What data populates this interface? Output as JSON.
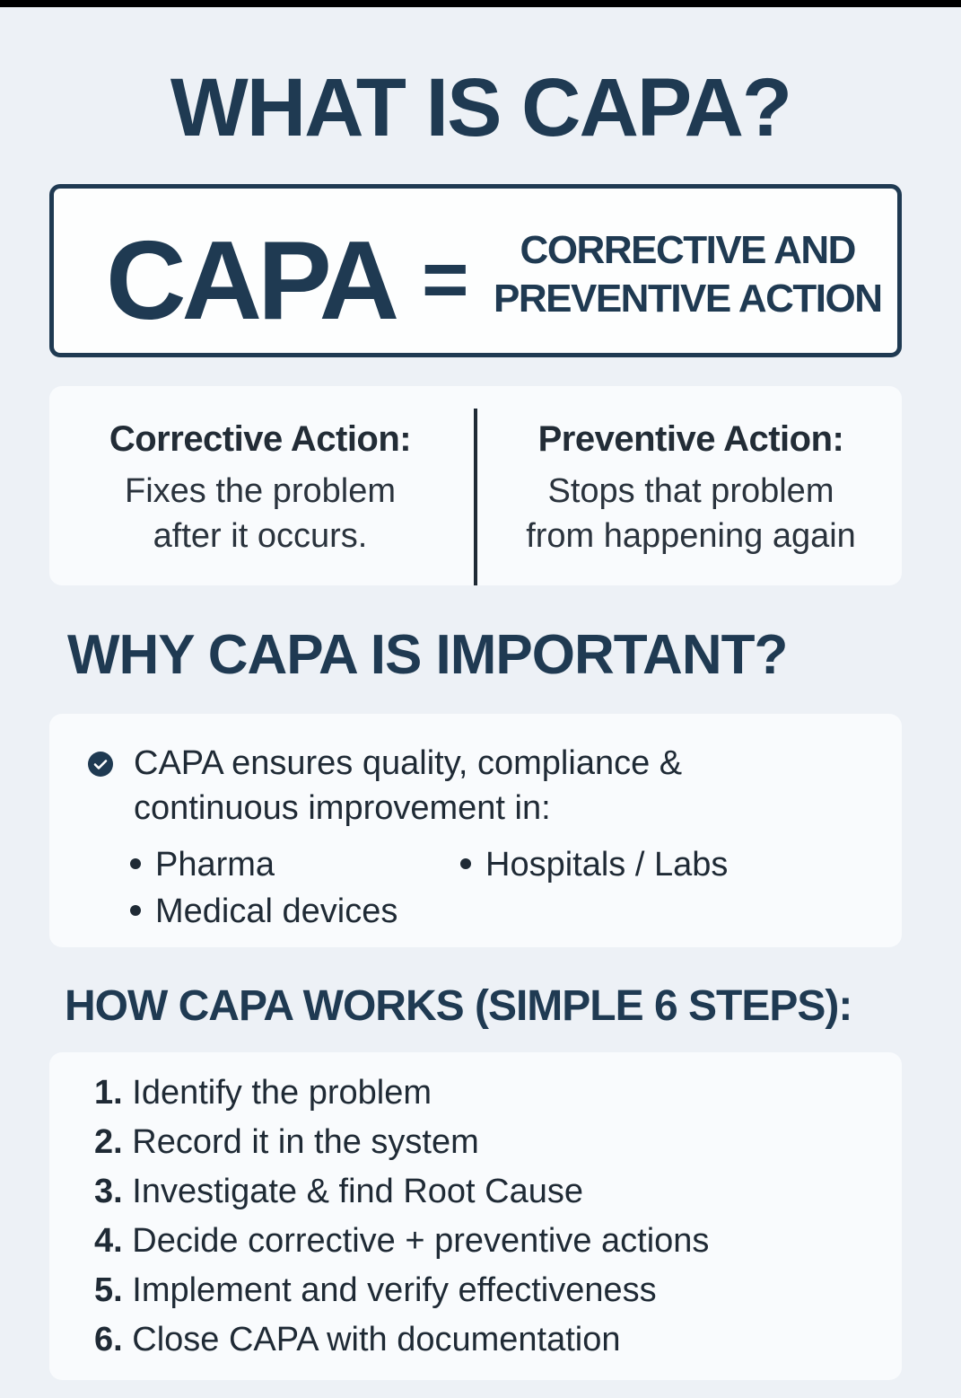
{
  "title": "WHAT IS CAPA?",
  "definition": {
    "acronym": "CAPA",
    "equals": "=",
    "line1": "CORRECTIVE AND",
    "line2": "PREVENTIVE ACTION"
  },
  "types": {
    "corrective": {
      "heading": "Corrective Action:",
      "line1": "Fixes the problem",
      "line2": "after it occurs."
    },
    "preventive": {
      "heading": "Preventive Action:",
      "line1": "Stops that problem",
      "line2": "from happening again"
    }
  },
  "why": {
    "heading": "WHY CAPA IS IMPORTANT?",
    "icon": "check-circle-icon",
    "line1": "CAPA ensures quality, compliance &",
    "line2": "continuous improvement in:",
    "items": [
      "Pharma",
      "Hospitals / Labs",
      "Medical devices"
    ]
  },
  "how": {
    "heading": "HOW CAPA WORKS (SIMPLE 6 STEPS):",
    "steps": [
      {
        "num": "1.",
        "text": "Identify the problem"
      },
      {
        "num": "2.",
        "text": "Record it in the system"
      },
      {
        "num": "3.",
        "text": "Investigate & find Root Cause"
      },
      {
        "num": "4.",
        "text": "Decide corrective + preventive actions"
      },
      {
        "num": "5.",
        "text": "Implement and verify effectiveness"
      },
      {
        "num": "6.",
        "text": "Close CAPA with documentation"
      }
    ]
  },
  "colors": {
    "navy": "#1f3a52",
    "background": "#edf1f6",
    "card": "#f9fbfd"
  }
}
